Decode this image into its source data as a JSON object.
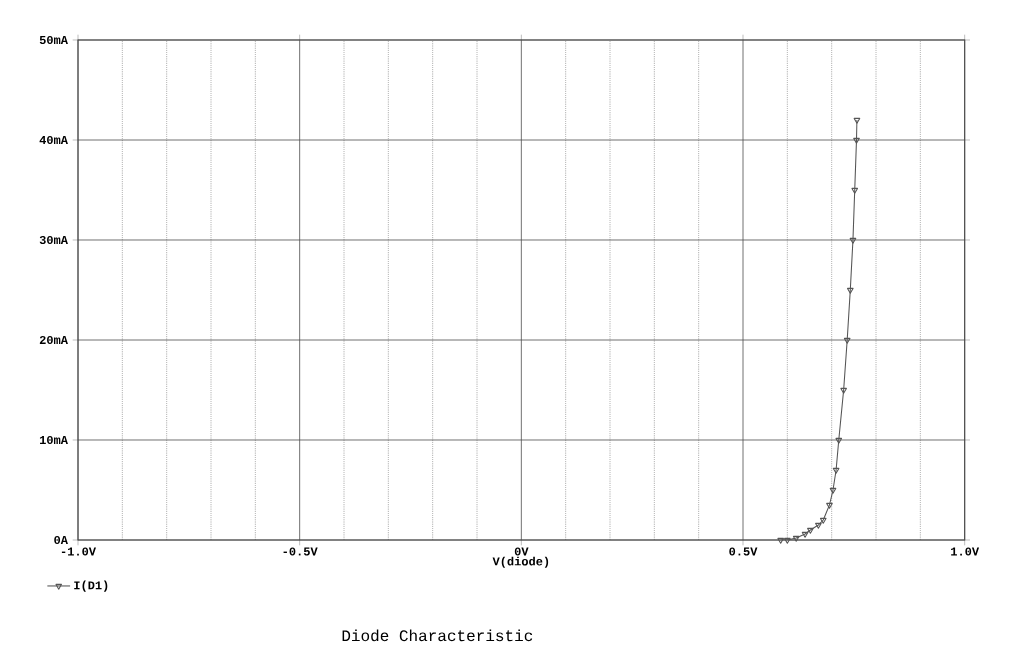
{
  "chart_data": {
    "type": "line",
    "xlabel": "V(diode)",
    "annotations": [
      "Diode Characteristic"
    ],
    "xlim": [
      -1.0,
      1.0
    ],
    "ylim": [
      0,
      50
    ],
    "xticks": [
      {
        "value": -1.0,
        "label": "-1.0V"
      },
      {
        "value": -0.9,
        "label": null
      },
      {
        "value": -0.8,
        "label": null
      },
      {
        "value": -0.7,
        "label": null
      },
      {
        "value": -0.6,
        "label": null
      },
      {
        "value": -0.5,
        "label": "-0.5V"
      },
      {
        "value": -0.4,
        "label": null
      },
      {
        "value": -0.3,
        "label": null
      },
      {
        "value": -0.2,
        "label": null
      },
      {
        "value": -0.1,
        "label": null
      },
      {
        "value": 0,
        "label": "0V"
      },
      {
        "value": 0.1,
        "label": null
      },
      {
        "value": 0.2,
        "label": null
      },
      {
        "value": 0.3,
        "label": null
      },
      {
        "value": 0.4,
        "label": null
      },
      {
        "value": 0.5,
        "label": "0.5V"
      },
      {
        "value": 0.6,
        "label": null
      },
      {
        "value": 0.7,
        "label": null
      },
      {
        "value": 0.8,
        "label": null
      },
      {
        "value": 0.9,
        "label": null
      },
      {
        "value": 1.0,
        "label": "1.0V"
      }
    ],
    "yticks": [
      {
        "value": 0,
        "label": "0A"
      },
      {
        "value": 10,
        "label": "10mA"
      },
      {
        "value": 20,
        "label": "20mA"
      },
      {
        "value": 30,
        "label": "30mA"
      },
      {
        "value": 40,
        "label": "40mA"
      },
      {
        "value": 50,
        "label": "50mA"
      }
    ],
    "grid": true,
    "legend": "bottom left",
    "marker": "triangle",
    "line_style": "solid",
    "series": [
      {
        "name": "I(D1)",
        "color": "#555555",
        "x": [
          0.585,
          0.6,
          0.62,
          0.64,
          0.652,
          0.67,
          0.681,
          0.695,
          0.703,
          0.71,
          0.716,
          0.727,
          0.735,
          0.742,
          0.748,
          0.752,
          0.756,
          0.757
        ],
        "values": [
          0,
          0,
          0.2,
          0.6,
          1,
          1.5,
          2,
          3.5,
          5,
          7,
          10,
          15,
          20,
          25,
          30,
          35,
          40,
          42
        ]
      }
    ]
  }
}
